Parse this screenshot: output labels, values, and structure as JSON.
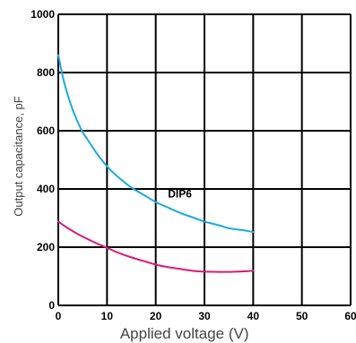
{
  "chart_data": {
    "type": "line",
    "title": "",
    "xlabel": "Applied voltage (V)",
    "ylabel": "Output capacitance, pF",
    "xlim": [
      0,
      60
    ],
    "ylim": [
      0,
      1000
    ],
    "x_ticks": [
      "0",
      "10",
      "20",
      "30",
      "40",
      "50",
      "60"
    ],
    "y_ticks": [
      "0",
      "200",
      "400",
      "600",
      "800",
      "1000"
    ],
    "grid": true,
    "series": [
      {
        "name": "DIP6",
        "color": "#1ca9e1",
        "x": [
          0,
          1,
          2,
          3,
          4,
          5,
          6,
          8,
          10,
          12,
          15,
          18,
          20,
          22,
          25,
          28,
          30,
          33,
          35,
          38,
          40
        ],
        "y": [
          860,
          780,
          720,
          670,
          630,
          595,
          570,
          520,
          478,
          445,
          405,
          375,
          355,
          340,
          318,
          300,
          288,
          275,
          265,
          258,
          252
        ]
      },
      {
        "name": "",
        "color": "#d81b7a",
        "x": [
          0,
          2,
          4,
          6,
          8,
          10,
          12,
          15,
          18,
          20,
          22,
          25,
          28,
          30,
          33,
          35,
          38,
          40
        ],
        "y": [
          288,
          265,
          245,
          228,
          212,
          198,
          183,
          165,
          150,
          140,
          133,
          125,
          118,
          116,
          115,
          115,
          117,
          119
        ]
      }
    ]
  }
}
